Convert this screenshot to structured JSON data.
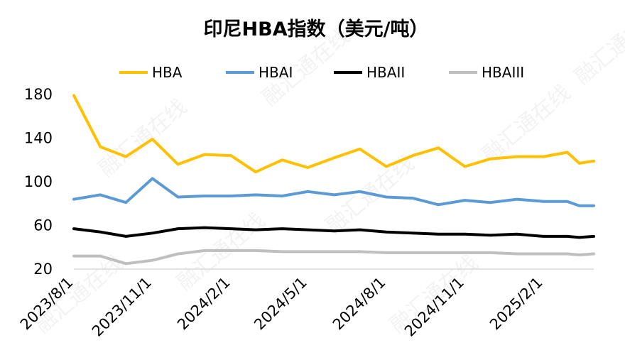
{
  "chart_data": {
    "type": "line",
    "title": "印尼HBA指数（美元/吨）",
    "ylim": [
      20,
      180
    ],
    "yticks": [
      20,
      60,
      100,
      140,
      180
    ],
    "x_tick_labels": [
      "2023/8/1",
      "2023/11/1",
      "2024/2/1",
      "2024/5/1",
      "2024/8/1",
      "2024/11/1",
      "2025/2/1"
    ],
    "x": [
      "2023/8/1",
      "2023/9/1",
      "2023/10/1",
      "2023/11/1",
      "2023/12/1",
      "2024/1/1",
      "2024/2/1",
      "2024/3/1",
      "2024/4/1",
      "2024/5/1",
      "2024/6/1",
      "2024/7/1",
      "2024/8/1",
      "2024/9/1",
      "2024/10/1",
      "2024/11/1",
      "2024/12/1",
      "2025/1/1",
      "2025/2/1",
      "2025/3/1",
      "2025/3/15",
      "2025/4/1"
    ],
    "series": [
      {
        "name": "HBA",
        "color": "#FFC000",
        "values": [
          179,
          132,
          123,
          139,
          116,
          125,
          124,
          109,
          120,
          113,
          122,
          130,
          114,
          124,
          131,
          114,
          121,
          123,
          123,
          127,
          117,
          119
        ]
      },
      {
        "name": "HBAI",
        "color": "#5B9BD5",
        "values": [
          84,
          88,
          81,
          103,
          86,
          87,
          87,
          88,
          87,
          91,
          88,
          91,
          86,
          85,
          79,
          83,
          81,
          84,
          82,
          82,
          78,
          78
        ]
      },
      {
        "name": "HBAII",
        "color": "#000000",
        "values": [
          57,
          54,
          50,
          53,
          57,
          58,
          57,
          56,
          57,
          56,
          55,
          56,
          54,
          53,
          52,
          52,
          51,
          52,
          50,
          50,
          49,
          50
        ]
      },
      {
        "name": "HBAIII",
        "color": "#BFBFBF",
        "values": [
          32,
          32,
          25,
          28,
          34,
          37,
          37,
          37,
          36,
          36,
          36,
          36,
          35,
          35,
          35,
          35,
          35,
          34,
          34,
          34,
          33,
          34
        ]
      }
    ],
    "legend_position": "top",
    "grid": false
  },
  "watermark": "融汇通在线"
}
